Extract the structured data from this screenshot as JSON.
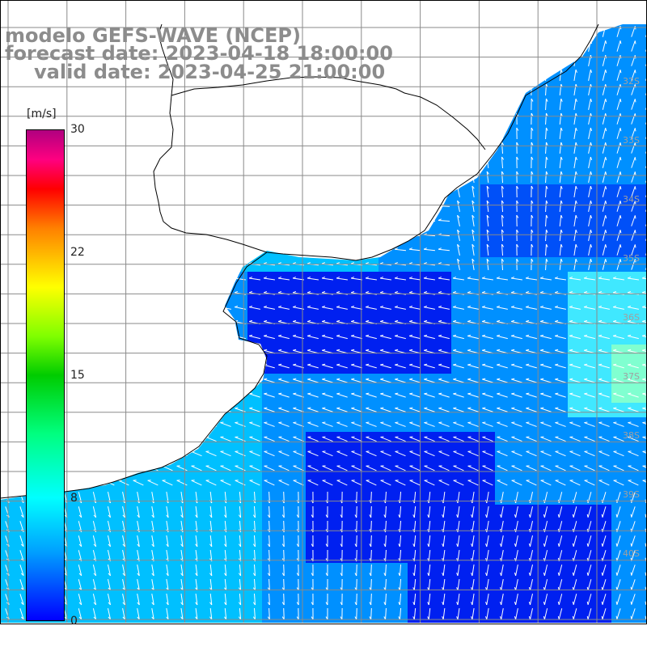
{
  "title": {
    "line1": "modelo GEFS-WAVE (NCEP)",
    "line2": "forecast date: 2023-04-18 18:00:00",
    "line3": "valid date: 2023-04-25 21:00:00"
  },
  "colorbar": {
    "unit": "[m/s]",
    "ticks": [
      "30",
      "22",
      "15",
      "8",
      "0"
    ],
    "colors": [
      "#0000ff",
      "#00a0ff",
      "#00ffff",
      "#00cc00",
      "#ffff00",
      "#ff8000",
      "#ff0000",
      "#b00080"
    ]
  },
  "map": {
    "lat_labels": [
      "32S",
      "33S",
      "34S",
      "35S",
      "36S",
      "37S",
      "38S",
      "39S",
      "40S"
    ],
    "land_color": "#ffffff",
    "grid_color": "#8a8a8a",
    "coast_color": "#000000",
    "arrow_color": "#ffffff",
    "sea_colors": [
      "#0020f0",
      "#0050f8",
      "#0090ff",
      "#00c0ff",
      "#40e8ff",
      "#80ffd0"
    ]
  }
}
